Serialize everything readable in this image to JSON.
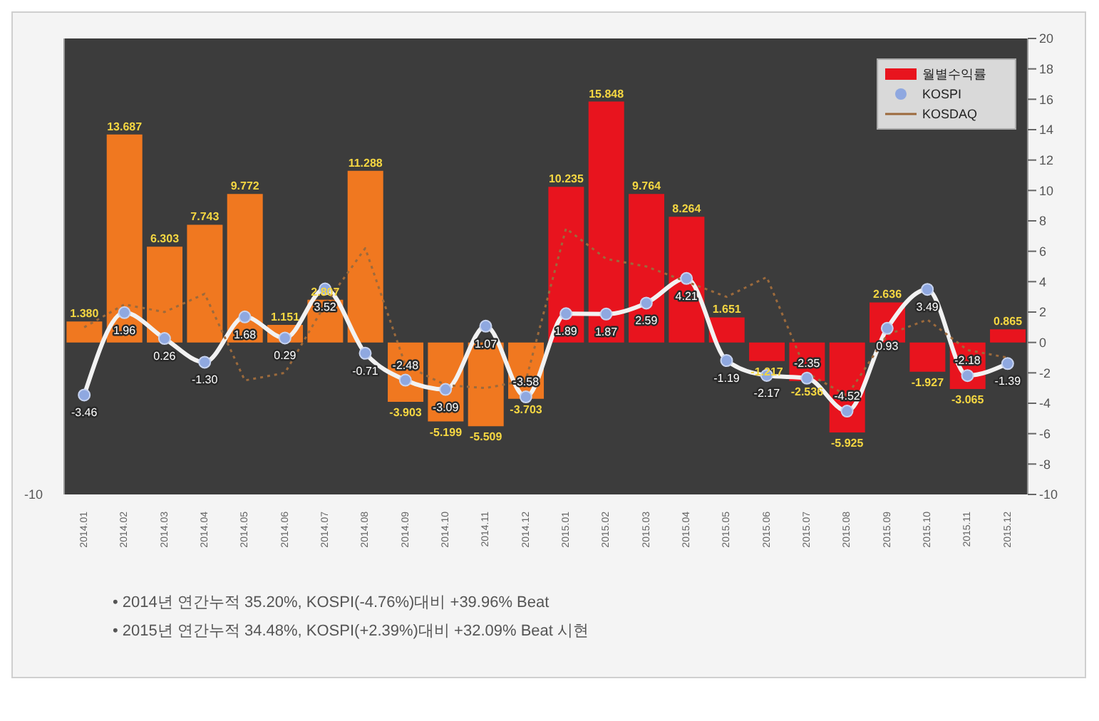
{
  "chart_data": {
    "type": "bar",
    "categories": [
      "2014.01",
      "2014.02",
      "2014.03",
      "2014.04",
      "2014.05",
      "2014.06",
      "2014.07",
      "2014.08",
      "2014.09",
      "2014.10",
      "2014.11",
      "2014.12",
      "2015.01",
      "2015.02",
      "2015.03",
      "2015.04",
      "2015.05",
      "2015.06",
      "2015.07",
      "2015.08",
      "2015.09",
      "2015.10",
      "2015.11",
      "2015.12"
    ],
    "series": [
      {
        "name": "월별수익률",
        "color": "#e8141e",
        "colors": [
          "#f07820",
          "#f07820",
          "#f07820",
          "#f07820",
          "#f07820",
          "#f07820",
          "#f07820",
          "#f07820",
          "#f07820",
          "#f07820",
          "#f07820",
          "#f07820",
          "#e8141e",
          "#e8141e",
          "#e8141e",
          "#e8141e",
          "#e8141e",
          "#e8141e",
          "#e8141e",
          "#e8141e",
          "#e8141e",
          "#e8141e",
          "#e8141e",
          "#e8141e"
        ],
        "values": [
          1.38,
          13.687,
          6.303,
          7.743,
          9.772,
          1.151,
          2.807,
          11.288,
          -3.903,
          -5.199,
          -5.509,
          -3.703,
          10.235,
          15.848,
          9.764,
          8.264,
          1.651,
          -1.217,
          -2.536,
          -5.925,
          2.636,
          -1.927,
          -3.065,
          0.865
        ],
        "value_labels": [
          "1.380",
          "13.687",
          "6.303",
          "7.743",
          "9.772",
          "1.151",
          "2.807",
          "11.288",
          "-3.903",
          "-5.199",
          "-5.509",
          "-3.703",
          "10.235",
          "15.848",
          "9.764",
          "8.264",
          "1.651",
          "-1.217",
          "-2.536",
          "-5.925",
          "2.636",
          "-1.927",
          "-3.065",
          "0.865"
        ]
      },
      {
        "name": "KOSPI",
        "type": "line",
        "color": "#f2f2f2",
        "marker": "circle",
        "values": [
          -3.46,
          1.96,
          0.26,
          -1.3,
          1.68,
          0.29,
          3.52,
          -0.71,
          -2.48,
          -3.09,
          1.07,
          -3.58,
          1.89,
          1.87,
          2.59,
          4.21,
          -1.19,
          -2.17,
          -2.35,
          -4.52,
          0.93,
          3.49,
          -2.18,
          -1.39
        ],
        "value_labels": [
          "-3.46",
          "1.96",
          "0.26",
          "-1.30",
          "1.68",
          "0.29",
          "3.52",
          "-0.71",
          "-2.48",
          "-3.09",
          "1.07",
          "-3.58",
          "1.89",
          "1.87",
          "2.59",
          "4.21",
          "-1.19",
          "-2.17",
          "-2.35",
          "-4.52",
          "0.93",
          "3.49",
          "-2.18",
          "-1.39"
        ]
      },
      {
        "name": "KOSDAQ",
        "type": "line",
        "color": "#9c6a3c",
        "marker": "none",
        "line_style": "dotted",
        "values": [
          1.0,
          2.5,
          2.0,
          3.2,
          -2.5,
          -2.0,
          2.5,
          6.2,
          -1.5,
          -2.8,
          -3.0,
          -2.5,
          7.5,
          5.5,
          5.0,
          4.0,
          3.0,
          4.3,
          -2.0,
          -3.5,
          0.5,
          1.5,
          -0.5,
          -1.0
        ]
      }
    ],
    "ylim": [
      -10,
      20
    ],
    "yticks": [
      -10,
      -8,
      -6,
      -4,
      -2,
      0,
      2,
      4,
      6,
      8,
      10,
      12,
      14,
      16,
      18,
      20
    ],
    "legend": "top right",
    "grid": false,
    "annotations": [
      "-10",
      "• 2014년 연간누적  35.20%, KOSPI(-4.76%)대비 +39.96% Beat",
      "• 2015년 연간누적  34.48%, KOSPI(+2.39%)대비 +32.09% Beat 시현"
    ]
  }
}
